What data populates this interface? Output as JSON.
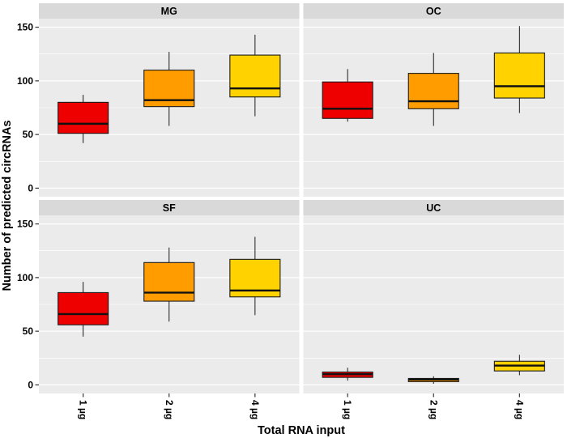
{
  "figure": {
    "x_axis_title": "Total RNA input",
    "y_axis_title": "Number of predicted circRNAs"
  },
  "chart_data": {
    "type": "boxplot",
    "faceted": true,
    "facet_labels": [
      "MG",
      "OC",
      "SF",
      "UC"
    ],
    "categories": [
      "1 µg",
      "2 µg",
      "4 µg"
    ],
    "xlabel": "Total RNA input",
    "ylabel": "Number of predicted circRNAs",
    "y_ticks": [
      0,
      50,
      100,
      150
    ],
    "y_minor_ticks": [
      25,
      75,
      125
    ],
    "ylim": [
      -8,
      158
    ],
    "grid": "white major and minor gridlines on gray panel",
    "legend": "none",
    "category_colors": {
      "1 µg": "#EF0000",
      "2 µg": "#FF9C00",
      "4 µg": "#FFD200"
    },
    "facets": [
      {
        "label": "MG",
        "boxes": [
          {
            "category": "1 µg",
            "whisker_low": 42,
            "q1": 51,
            "median": 60,
            "q3": 80,
            "whisker_high": 87
          },
          {
            "category": "2 µg",
            "whisker_low": 58,
            "q1": 76,
            "median": 82,
            "q3": 110,
            "whisker_high": 127
          },
          {
            "category": "4 µg",
            "whisker_low": 67,
            "q1": 85,
            "median": 93,
            "q3": 124,
            "whisker_high": 143
          }
        ]
      },
      {
        "label": "OC",
        "boxes": [
          {
            "category": "1 µg",
            "whisker_low": 62,
            "q1": 65,
            "median": 74,
            "q3": 99,
            "whisker_high": 111
          },
          {
            "category": "2 µg",
            "whisker_low": 58,
            "q1": 74,
            "median": 81,
            "q3": 107,
            "whisker_high": 126
          },
          {
            "category": "4 µg",
            "whisker_low": 70,
            "q1": 84,
            "median": 95,
            "q3": 126,
            "whisker_high": 151
          }
        ]
      },
      {
        "label": "SF",
        "boxes": [
          {
            "category": "1 µg",
            "whisker_low": 45,
            "q1": 56,
            "median": 66,
            "q3": 86,
            "whisker_high": 96
          },
          {
            "category": "2 µg",
            "whisker_low": 59,
            "q1": 78,
            "median": 86,
            "q3": 114,
            "whisker_high": 128
          },
          {
            "category": "4 µg",
            "whisker_low": 65,
            "q1": 82,
            "median": 88,
            "q3": 117,
            "whisker_high": 138
          }
        ]
      },
      {
        "label": "UC",
        "boxes": [
          {
            "category": "1 µg",
            "whisker_low": 4,
            "q1": 7,
            "median": 10,
            "q3": 12,
            "whisker_high": 16
          },
          {
            "category": "2 µg",
            "whisker_low": 1,
            "q1": 3,
            "median": 5,
            "q3": 6,
            "whisker_high": 8
          },
          {
            "category": "4 µg",
            "whisker_low": 9,
            "q1": 13,
            "median": 18,
            "q3": 22,
            "whisker_high": 28
          }
        ]
      }
    ],
    "style": {
      "panel_background": "#EBEBEB",
      "strip_background": "#D9D9D9",
      "gridline_color": "#FFFFFF",
      "box_border_color": "#1A1A1A",
      "tick_color": "#333333",
      "text_color": "#000000"
    }
  }
}
